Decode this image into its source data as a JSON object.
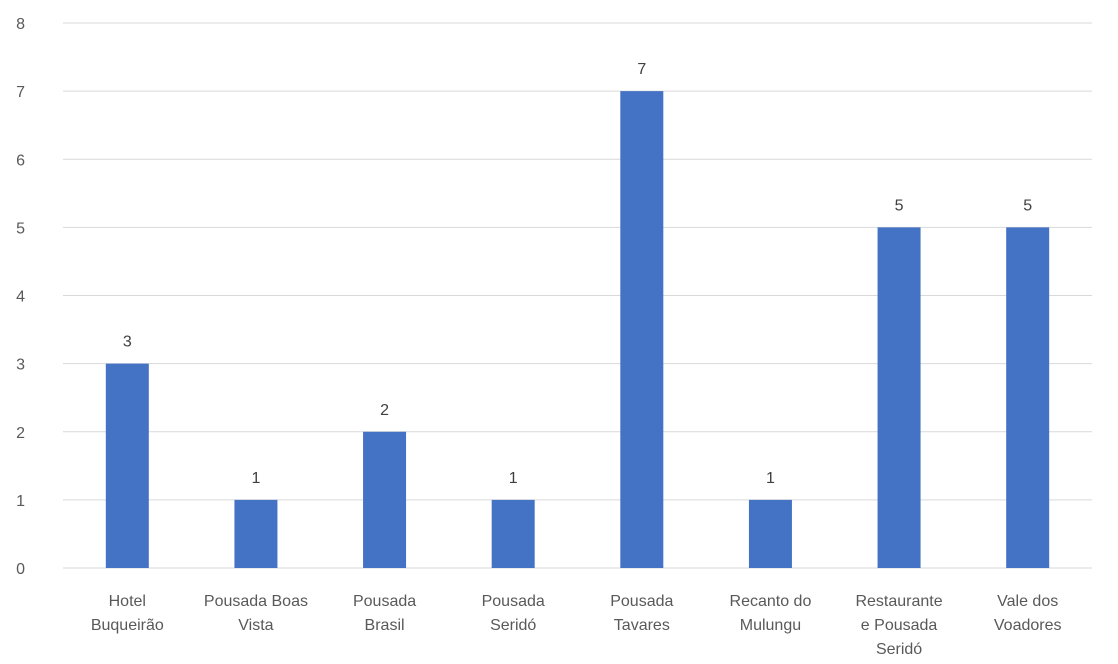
{
  "chart_data": {
    "type": "bar",
    "title": "",
    "xlabel": "",
    "ylabel": "",
    "categories": [
      "Hotel Buqueirão",
      "Pousada Boas Vista",
      "Pousada Brasil",
      "Pousada Seridó",
      "Pousada Tavares",
      "Recanto do Mulungu",
      "Restaurante e Pousada Seridó",
      "Vale dos Voadores"
    ],
    "category_label_lines": [
      [
        "Hotel",
        "Buqueirão"
      ],
      [
        "Pousada Boas",
        "Vista"
      ],
      [
        "Pousada",
        "Brasil"
      ],
      [
        "Pousada",
        "Seridó"
      ],
      [
        "Pousada",
        "Tavares"
      ],
      [
        "Recanto do",
        "Mulungu"
      ],
      [
        "Restaurante",
        "e Pousada",
        "Seridó"
      ],
      [
        "Vale dos",
        "Voadores"
      ]
    ],
    "values": [
      3,
      1,
      2,
      1,
      7,
      1,
      5,
      5
    ],
    "ylim": [
      0,
      8
    ],
    "yticks": [
      0,
      1,
      2,
      3,
      4,
      5,
      6,
      7,
      8
    ],
    "grid": true,
    "legend": "none",
    "bar_color": "#4472C4",
    "data_labels": true
  }
}
